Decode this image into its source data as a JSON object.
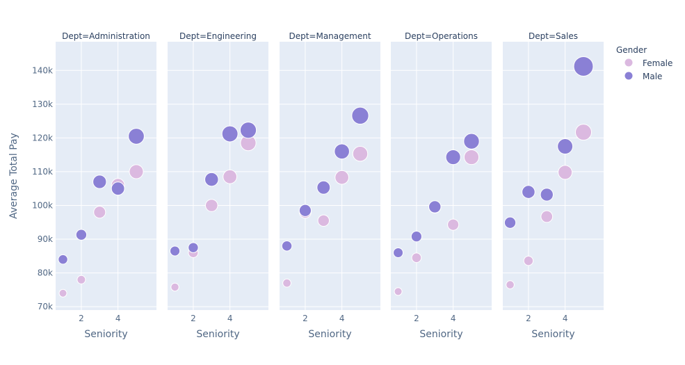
{
  "chart_data": {
    "type": "scatter",
    "subtype": "bubble",
    "facet_by": "Dept",
    "facets": [
      {
        "title": "Dept=Administration",
        "series": [
          {
            "name": "Female",
            "x": [
              1,
              2,
              3,
              4,
              5
            ],
            "y": [
              74000,
              78000,
              98000,
              106000,
              110000
            ]
          },
          {
            "name": "Male",
            "x": [
              1,
              2,
              3,
              4,
              5
            ],
            "y": [
              84000,
              91300,
              107000,
              105000,
              120500
            ]
          }
        ]
      },
      {
        "title": "Dept=Engineering",
        "series": [
          {
            "name": "Female",
            "x": [
              1,
              2,
              3,
              4,
              5
            ],
            "y": [
              75800,
              86000,
              100000,
              108500,
              118500
            ]
          },
          {
            "name": "Male",
            "x": [
              1,
              2,
              3,
              4,
              5
            ],
            "y": [
              86500,
              87500,
              107700,
              121200,
              122300
            ]
          }
        ]
      },
      {
        "title": "Dept=Management",
        "series": [
          {
            "name": "Female",
            "x": [
              1,
              2,
              3,
              4,
              5
            ],
            "y": [
              77000,
              98000,
              95500,
              108300,
              115300
            ]
          },
          {
            "name": "Male",
            "x": [
              1,
              2,
              3,
              4,
              5
            ],
            "y": [
              88000,
              98500,
              105300,
              116000,
              126600
            ]
          }
        ]
      },
      {
        "title": "Dept=Operations",
        "series": [
          {
            "name": "Female",
            "x": [
              1,
              2,
              3,
              4,
              5
            ],
            "y": [
              74500,
              84500,
              99500,
              94300,
              114300
            ]
          },
          {
            "name": "Male",
            "x": [
              1,
              2,
              3,
              4,
              5
            ],
            "y": [
              86000,
              90800,
              99600,
              114300,
              119000
            ]
          }
        ]
      },
      {
        "title": "Dept=Sales",
        "series": [
          {
            "name": "Female",
            "x": [
              1,
              2,
              3,
              4,
              5
            ],
            "y": [
              76500,
              83600,
              96700,
              109800,
              121700
            ]
          },
          {
            "name": "Male",
            "x": [
              1,
              2,
              3,
              4,
              5
            ],
            "y": [
              94900,
              104000,
              103200,
              117500,
              141200
            ]
          }
        ]
      }
    ],
    "xlabel": "Seniority",
    "ylabel": "Average Total Pay",
    "xlim": [
      0.6,
      6.1
    ],
    "ylim": [
      69000,
      148500
    ],
    "xticks": [
      2,
      4
    ],
    "yticks": [
      70000,
      80000,
      90000,
      100000,
      110000,
      120000,
      130000,
      140000
    ],
    "ytick_labels": [
      "70k",
      "80k",
      "90k",
      "100k",
      "110k",
      "120k",
      "130k",
      "140k"
    ],
    "legend": {
      "title": "Gender",
      "placement": "top-right",
      "entries": [
        "Female",
        "Male"
      ]
    },
    "colors": {
      "Female": "#dbb9e0",
      "Male": "#8a80d5"
    },
    "grid": true,
    "plot_background": "#e5ecf6"
  }
}
